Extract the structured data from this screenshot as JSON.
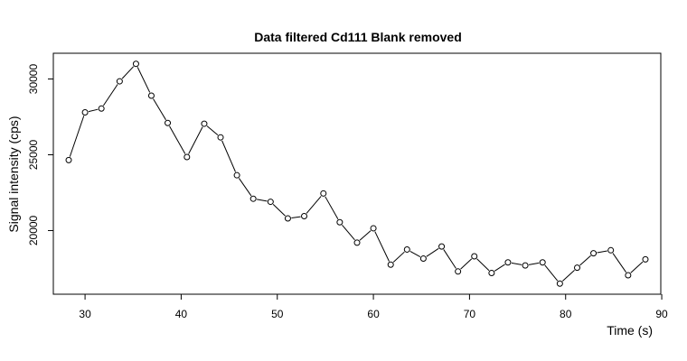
{
  "chart_data": {
    "type": "line",
    "title": "Data filtered Cd111 Blank removed",
    "xlabel": "Time (s)",
    "ylabel": "Signal intensity (cps)",
    "xlim": [
      26.7,
      89.9
    ],
    "ylim": [
      15800,
      31700
    ],
    "x_ticks": [
      30,
      40,
      50,
      60,
      70,
      80,
      90
    ],
    "y_ticks": [
      20000,
      25000,
      30000
    ],
    "grid": false,
    "series": [
      {
        "x": [
          28.3,
          30.0,
          31.7,
          33.6,
          35.3,
          36.9,
          38.6,
          40.6,
          42.4,
          44.1,
          45.8,
          47.5,
          49.3,
          51.1,
          52.8,
          54.8,
          56.5,
          58.3,
          60.0,
          61.8,
          63.5,
          65.2,
          67.1,
          68.8,
          70.5,
          72.3,
          74.0,
          75.8,
          77.6,
          79.4,
          81.2,
          82.9,
          84.7,
          86.5,
          88.3
        ],
        "y": [
          24650,
          27800,
          28050,
          29850,
          31000,
          28900,
          27100,
          24850,
          27050,
          26150,
          23650,
          22100,
          21900,
          20800,
          20950,
          22450,
          20550,
          19200,
          20150,
          17750,
          18750,
          18150,
          18950,
          17300,
          18300,
          17200,
          17900,
          17700,
          17900,
          16500,
          17550,
          18500,
          18700,
          17050,
          18100
        ]
      }
    ]
  }
}
